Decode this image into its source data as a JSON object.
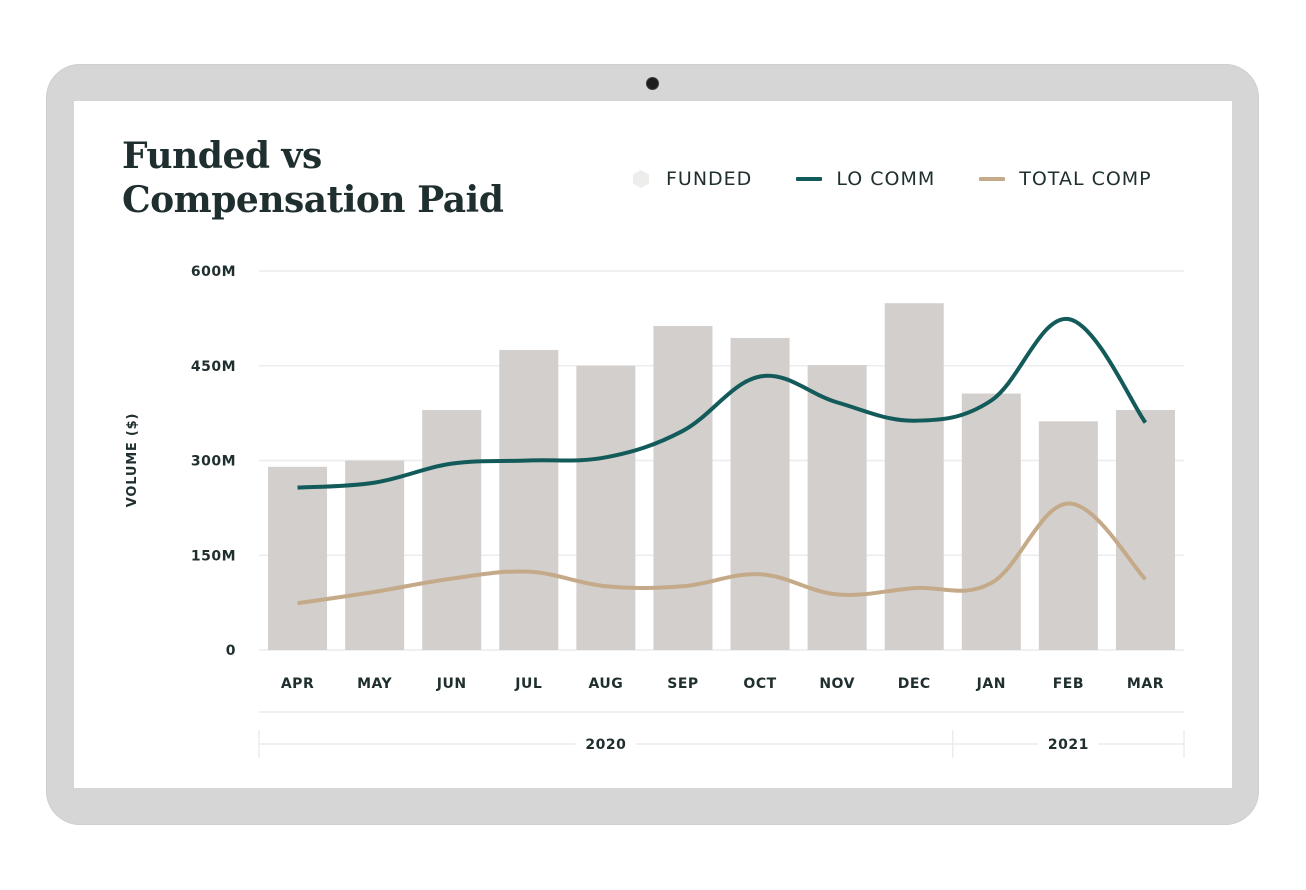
{
  "device": {
    "type": "laptop-frame",
    "camera_icon": "webcam-dot"
  },
  "colors": {
    "funded": "#d2cfcc",
    "lo_comm": "#135b5a",
    "total_comp": "#c5aa8a",
    "text": "#1f2e2e",
    "grid": "#ececec",
    "frame": "#d6d6d6"
  },
  "legend": [
    {
      "label": "FUNDED",
      "icon": "hexagon-swatch"
    },
    {
      "label": "LO COMM",
      "icon": "line-swatch"
    },
    {
      "label": "TOTAL COMP",
      "icon": "line-swatch"
    }
  ],
  "chart_data": {
    "type": "bar",
    "title": "Funded vs Compensation Paid",
    "xlabel": "",
    "ylabel": "VOLUME ($)",
    "ylim": [
      0,
      600
    ],
    "yunit": "M",
    "yticks": [
      0,
      150,
      300,
      450,
      600
    ],
    "ytick_labels": [
      "0",
      "150M",
      "300M",
      "450M",
      "600M"
    ],
    "grid": true,
    "legend_position": "top-right",
    "categories": [
      "APR",
      "MAY",
      "JUN",
      "JUL",
      "AUG",
      "SEP",
      "OCT",
      "NOV",
      "DEC",
      "JAN",
      "FEB",
      "MAR"
    ],
    "year_groups": [
      {
        "label": "2020",
        "start": "APR",
        "end": "DEC",
        "count": 9
      },
      {
        "label": "2021",
        "start": "JAN",
        "end": "MAR",
        "count": 3
      }
    ],
    "series": [
      {
        "name": "FUNDED",
        "type": "bar",
        "values": [
          290,
          300,
          380,
          475,
          450,
          513,
          494,
          451,
          549,
          406,
          362,
          380
        ]
      },
      {
        "name": "LO COMM",
        "type": "line",
        "smooth": true,
        "values": [
          257,
          265,
          295,
          300,
          305,
          347,
          433,
          392,
          363,
          395,
          524,
          360
        ]
      },
      {
        "name": "TOTAL COMP",
        "type": "line",
        "smooth": true,
        "values": [
          74,
          92,
          113,
          124,
          101,
          101,
          120,
          88,
          98,
          106,
          232,
          112
        ]
      }
    ]
  }
}
